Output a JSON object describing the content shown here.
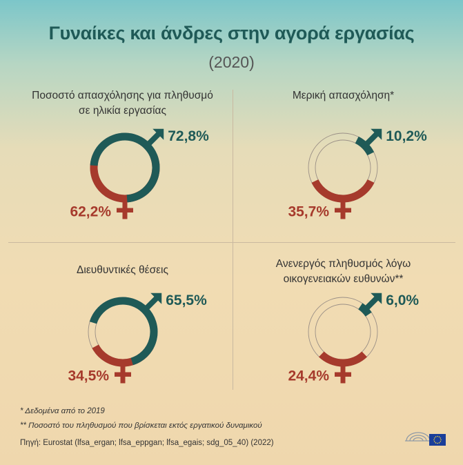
{
  "title": "Γυναίκες και άνδρες στην αγορά εργασίας",
  "subtitle": "(2020)",
  "colors": {
    "male": "#1f5a57",
    "female": "#a63a2c"
  },
  "chart_data": [
    {
      "type": "donut",
      "title": "Ποσοστό απασχόλησης για πληθυσμό σε ηλικία εργασίας",
      "series": [
        {
          "name": "♂",
          "value": 72.8,
          "label": "72,8%"
        },
        {
          "name": "♀",
          "value": 62.2,
          "label": "62,2%"
        }
      ]
    },
    {
      "type": "donut",
      "title": "Μερική απασχόληση*",
      "series": [
        {
          "name": "♂",
          "value": 10.2,
          "label": "10,2%"
        },
        {
          "name": "♀",
          "value": 35.7,
          "label": "35,7%"
        }
      ]
    },
    {
      "type": "donut",
      "title": "Διευθυντικές θέσεις",
      "series": [
        {
          "name": "♂",
          "value": 65.5,
          "label": "65,5%"
        },
        {
          "name": "♀",
          "value": 34.5,
          "label": "34,5%"
        }
      ]
    },
    {
      "type": "donut",
      "title": "Ανενεργός πληθυσμός λόγω οικογενειακών ευθυνών**",
      "series": [
        {
          "name": "♂",
          "value": 6.0,
          "label": "6,0%"
        },
        {
          "name": "♀",
          "value": 24.4,
          "label": "24,4%"
        }
      ]
    }
  ],
  "panels": [
    {
      "title_line1": "Ποσοστό απασχόλησης για πληθυσμό",
      "title_line2": "σε ηλικία εργασίας"
    },
    {
      "title_line1": "Μερική απασχόληση*",
      "title_line2": ""
    },
    {
      "title_line1": "Διευθυντικές θέσεις",
      "title_line2": ""
    },
    {
      "title_line1": "Ανενεργός πληθυσμός λόγω",
      "title_line2": "οικογενειακών ευθυνών**"
    }
  ],
  "footnotes": {
    "note1": "* Δεδομένα από το 2019",
    "note2": "** Ποσοστό του πληθυσμού που βρίσκεται εκτός εργατικού δυναμικού",
    "source": "Πηγή: Eurostat (lfsa_ergan; lfsa_eppgan; lfsa_egais; sdg_05_40) (2022)"
  }
}
